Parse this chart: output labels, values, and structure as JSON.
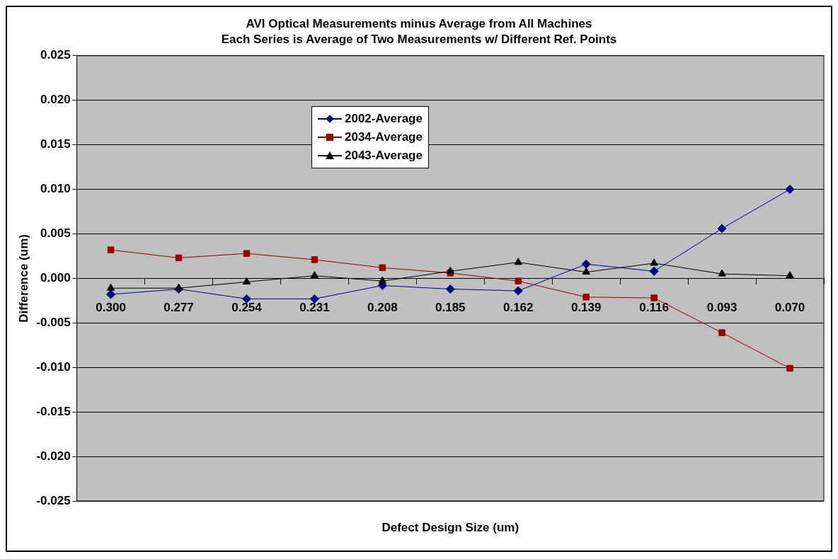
{
  "chart_data": {
    "type": "line",
    "title": "AVI Optical Measurements minus Average from All Machines",
    "subtitle": "Each Series is Average of Two Measurements w/ Different Ref. Points",
    "xlabel": "Defect Design Size (um)",
    "ylabel": "Difference (um)",
    "categories": [
      "0.300",
      "0.277",
      "0.254",
      "0.231",
      "0.208",
      "0.185",
      "0.162",
      "0.139",
      "0.116",
      "0.093",
      "0.070"
    ],
    "series": [
      {
        "name": "2002-Average",
        "color": "#000080",
        "marker": "diamond",
        "values": [
          -0.0018,
          -0.0012,
          -0.0023,
          -0.0023,
          -0.0008,
          -0.0012,
          -0.0014,
          0.0016,
          0.0008,
          0.0056,
          0.01
        ]
      },
      {
        "name": "2034-Average",
        "color": "#990000",
        "marker": "square",
        "values": [
          0.0032,
          0.0023,
          0.0028,
          0.0021,
          0.0012,
          0.0006,
          -0.0003,
          -0.0021,
          -0.0022,
          -0.0061,
          -0.0101
        ]
      },
      {
        "name": "2043-Average",
        "color": "#000000",
        "marker": "triangle",
        "values": [
          -0.0011,
          -0.0011,
          -0.0004,
          0.0003,
          -0.0003,
          0.0008,
          0.0018,
          0.0007,
          0.0017,
          0.0005,
          0.0003
        ]
      }
    ],
    "ylim": [
      -0.025,
      0.025
    ],
    "yticks": [
      {
        "value": -0.025,
        "label": "-0.025"
      },
      {
        "value": -0.02,
        "label": "-0.020"
      },
      {
        "value": -0.015,
        "label": "-0.015"
      },
      {
        "value": -0.01,
        "label": "-0.010"
      },
      {
        "value": -0.005,
        "label": "-0.005"
      },
      {
        "value": 0,
        "label": "0.000"
      },
      {
        "value": 0.005,
        "label": "0.005"
      },
      {
        "value": 0.01,
        "label": "0.010"
      },
      {
        "value": 0.015,
        "label": "0.015"
      },
      {
        "value": 0.02,
        "label": "0.020"
      },
      {
        "value": 0.025,
        "label": "0.025"
      }
    ],
    "grid": "y",
    "legend": "top left",
    "line_style": "solid"
  }
}
